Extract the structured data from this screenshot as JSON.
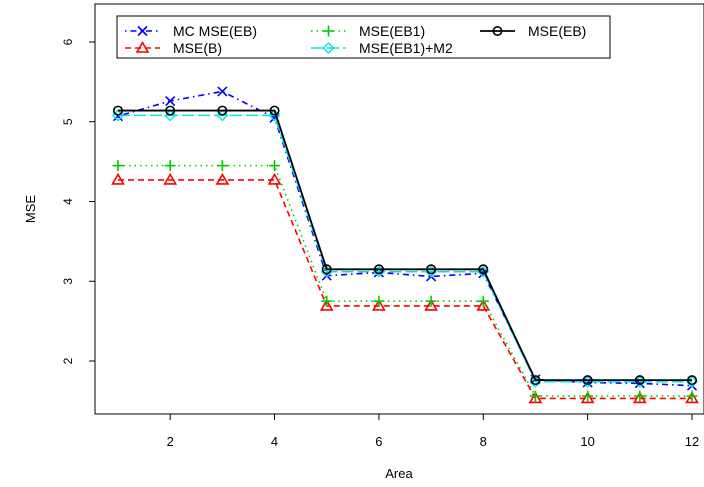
{
  "chart_data": {
    "type": "line",
    "title": "",
    "xlabel": "Area",
    "ylabel": "MSE",
    "x": [
      1,
      2,
      3,
      4,
      5,
      6,
      7,
      8,
      9,
      10,
      11,
      12
    ],
    "xlim": [
      0.5,
      12.5
    ],
    "ylim": [
      1.4,
      6.4
    ],
    "xticks": [
      2,
      4,
      6,
      8,
      10,
      12
    ],
    "yticks": [
      2,
      3,
      4,
      5,
      6
    ],
    "grid": false,
    "legend_position": "top",
    "series": [
      {
        "name": "MC MSE(EB)",
        "color": "#0000ff",
        "dash": "dotdash",
        "marker": "x",
        "values": [
          5.07,
          5.26,
          5.38,
          5.05,
          3.07,
          3.11,
          3.06,
          3.1,
          1.77,
          1.73,
          1.72,
          1.69
        ]
      },
      {
        "name": "MSE(B)",
        "color": "#ff0000",
        "dash": "dashed",
        "marker": "triangle",
        "values": [
          4.27,
          4.27,
          4.27,
          4.27,
          2.69,
          2.69,
          2.69,
          2.69,
          1.53,
          1.53,
          1.53,
          1.53
        ]
      },
      {
        "name": "MSE(EB1)",
        "color": "#00cd00",
        "dash": "dotted",
        "marker": "plus",
        "values": [
          4.45,
          4.45,
          4.45,
          4.45,
          2.75,
          2.75,
          2.75,
          2.75,
          1.56,
          1.56,
          1.56,
          1.56
        ]
      },
      {
        "name": "MSE(EB1)+M2",
        "color": "#00e5ee",
        "dash": "longdash",
        "marker": "diamond",
        "values": [
          5.08,
          5.08,
          5.08,
          5.08,
          3.12,
          3.12,
          3.12,
          3.12,
          1.74,
          1.74,
          1.74,
          1.74
        ]
      },
      {
        "name": "MSE(EB)",
        "color": "#000000",
        "dash": "solid",
        "marker": "circle",
        "values": [
          5.14,
          5.14,
          5.14,
          5.14,
          3.15,
          3.15,
          3.15,
          3.15,
          1.76,
          1.76,
          1.76,
          1.76
        ]
      }
    ]
  }
}
